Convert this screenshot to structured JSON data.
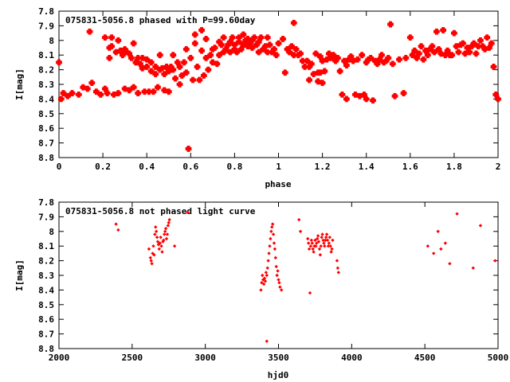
{
  "chart_data": [
    {
      "type": "scatter",
      "title": "075831-5056.8 phased with P=99.60day",
      "xlabel": "phase",
      "ylabel": "I[mag]",
      "xlim": [
        0,
        2
      ],
      "ylim": [
        7.8,
        8.8
      ],
      "y_inverted": true,
      "grid": false,
      "marker": "star",
      "color": "#ff0000",
      "xticks": [
        "0",
        "0.2",
        "0.4",
        "0.6",
        "0.8",
        "1",
        "1.2",
        "1.4",
        "1.6",
        "1.8",
        "2"
      ],
      "yticks": [
        "7.8",
        "7.9",
        "8",
        "8.1",
        "8.2",
        "8.3",
        "8.4",
        "8.5",
        "8.6",
        "8.7",
        "8.8"
      ],
      "points": [
        [
          0.0,
          8.15
        ],
        [
          0.01,
          8.4
        ],
        [
          0.02,
          8.36
        ],
        [
          0.04,
          8.38
        ],
        [
          0.06,
          8.36
        ],
        [
          0.09,
          8.37
        ],
        [
          0.11,
          8.32
        ],
        [
          0.13,
          8.33
        ],
        [
          0.14,
          7.94
        ],
        [
          0.15,
          8.29
        ],
        [
          0.17,
          8.35
        ],
        [
          0.19,
          8.37
        ],
        [
          0.21,
          8.33
        ],
        [
          0.22,
          8.36
        ],
        [
          0.21,
          7.98
        ],
        [
          0.23,
          8.05
        ],
        [
          0.23,
          8.12
        ],
        [
          0.24,
          8.04
        ],
        [
          0.24,
          7.98
        ],
        [
          0.25,
          8.37
        ],
        [
          0.26,
          8.08
        ],
        [
          0.27,
          8.36
        ],
        [
          0.27,
          8.0
        ],
        [
          0.28,
          8.07
        ],
        [
          0.29,
          8.1
        ],
        [
          0.3,
          8.33
        ],
        [
          0.3,
          8.06
        ],
        [
          0.31,
          8.08
        ],
        [
          0.32,
          8.34
        ],
        [
          0.32,
          8.09
        ],
        [
          0.33,
          8.12
        ],
        [
          0.34,
          8.32
        ],
        [
          0.34,
          8.02
        ],
        [
          0.35,
          8.15
        ],
        [
          0.36,
          8.36
        ],
        [
          0.36,
          8.12
        ],
        [
          0.37,
          8.16
        ],
        [
          0.38,
          8.19
        ],
        [
          0.38,
          8.12
        ],
        [
          0.39,
          8.35
        ],
        [
          0.4,
          8.18
        ],
        [
          0.4,
          8.13
        ],
        [
          0.41,
          8.35
        ],
        [
          0.42,
          8.21
        ],
        [
          0.42,
          8.15
        ],
        [
          0.43,
          8.35
        ],
        [
          0.44,
          8.18
        ],
        [
          0.44,
          8.23
        ],
        [
          0.45,
          8.32
        ],
        [
          0.46,
          8.2
        ],
        [
          0.46,
          8.1
        ],
        [
          0.47,
          8.19
        ],
        [
          0.48,
          8.34
        ],
        [
          0.48,
          8.23
        ],
        [
          0.49,
          8.18
        ],
        [
          0.5,
          8.35
        ],
        [
          0.5,
          8.21
        ],
        [
          0.51,
          8.18
        ],
        [
          0.52,
          8.2
        ],
        [
          0.52,
          8.1
        ],
        [
          0.53,
          8.26
        ],
        [
          0.54,
          8.15
        ],
        [
          0.55,
          8.3
        ],
        [
          0.55,
          8.18
        ],
        [
          0.56,
          8.24
        ],
        [
          0.57,
          8.15
        ],
        [
          0.58,
          8.22
        ],
        [
          0.58,
          8.06
        ],
        [
          0.59,
          8.74
        ],
        [
          0.6,
          8.12
        ],
        [
          0.61,
          8.27
        ],
        [
          0.62,
          8.02
        ],
        [
          0.62,
          7.96
        ],
        [
          0.63,
          8.18
        ],
        [
          0.64,
          8.27
        ],
        [
          0.65,
          8.07
        ],
        [
          0.65,
          7.93
        ],
        [
          0.66,
          8.24
        ],
        [
          0.67,
          8.12
        ],
        [
          0.67,
          7.99
        ],
        [
          0.68,
          8.2
        ],
        [
          0.69,
          8.1
        ],
        [
          0.7,
          8.15
        ],
        [
          0.7,
          8.06
        ],
        [
          0.71,
          8.05
        ],
        [
          0.72,
          8.16
        ],
        [
          0.73,
          8.1
        ],
        [
          0.73,
          8.01
        ],
        [
          0.74,
          8.03
        ],
        [
          0.75,
          7.98
        ],
        [
          0.75,
          8.08
        ],
        [
          0.76,
          8.06
        ],
        [
          0.77,
          8.03
        ],
        [
          0.78,
          8.01
        ],
        [
          0.78,
          8.08
        ],
        [
          0.79,
          7.98
        ],
        [
          0.8,
          8.06
        ],
        [
          0.8,
          8.03
        ],
        [
          0.81,
          8.08
        ],
        [
          0.82,
          8.01
        ],
        [
          0.82,
          7.98
        ],
        [
          0.83,
          8.06
        ],
        [
          0.84,
          7.96
        ],
        [
          0.84,
          8.03
        ],
        [
          0.85,
          8.0
        ],
        [
          0.86,
          8.04
        ],
        [
          0.86,
          7.99
        ],
        [
          0.87,
          8.02
        ],
        [
          0.88,
          8.05
        ],
        [
          0.88,
          8.0
        ],
        [
          0.89,
          7.98
        ],
        [
          0.9,
          8.03
        ],
        [
          0.91,
          8.08
        ],
        [
          0.91,
          8.01
        ],
        [
          0.92,
          7.98
        ],
        [
          0.93,
          8.06
        ],
        [
          0.94,
          8.04
        ],
        [
          0.95,
          8.08
        ],
        [
          0.95,
          7.98
        ],
        [
          0.96,
          8.03
        ],
        [
          0.97,
          8.08
        ],
        [
          0.98,
          8.06
        ],
        [
          0.99,
          8.1
        ],
        [
          1.0,
          8.02
        ],
        [
          1.02,
          7.99
        ],
        [
          1.03,
          8.22
        ],
        [
          1.04,
          8.06
        ],
        [
          1.05,
          8.08
        ],
        [
          1.06,
          8.04
        ],
        [
          1.07,
          8.1
        ],
        [
          1.07,
          7.88
        ],
        [
          1.08,
          8.06
        ],
        [
          1.09,
          8.1
        ],
        [
          1.1,
          8.09
        ],
        [
          1.11,
          8.14
        ],
        [
          1.12,
          8.18
        ],
        [
          1.13,
          8.14
        ],
        [
          1.14,
          8.18
        ],
        [
          1.14,
          8.27
        ],
        [
          1.15,
          8.16
        ],
        [
          1.16,
          8.23
        ],
        [
          1.17,
          8.09
        ],
        [
          1.18,
          8.22
        ],
        [
          1.18,
          8.28
        ],
        [
          1.19,
          8.11
        ],
        [
          1.19,
          8.22
        ],
        [
          1.2,
          8.14
        ],
        [
          1.2,
          8.29
        ],
        [
          1.21,
          8.21
        ],
        [
          1.22,
          8.13
        ],
        [
          1.23,
          8.09
        ],
        [
          1.24,
          8.12
        ],
        [
          1.25,
          8.1
        ],
        [
          1.26,
          8.14
        ],
        [
          1.27,
          8.12
        ],
        [
          1.28,
          8.21
        ],
        [
          1.29,
          8.37
        ],
        [
          1.3,
          8.14
        ],
        [
          1.31,
          8.17
        ],
        [
          1.31,
          8.4
        ],
        [
          1.32,
          8.13
        ],
        [
          1.33,
          8.11
        ],
        [
          1.34,
          8.14
        ],
        [
          1.35,
          8.37
        ],
        [
          1.36,
          8.13
        ],
        [
          1.37,
          8.38
        ],
        [
          1.38,
          8.1
        ],
        [
          1.39,
          8.37
        ],
        [
          1.4,
          8.15
        ],
        [
          1.4,
          8.4
        ],
        [
          1.41,
          8.13
        ],
        [
          1.42,
          8.12
        ],
        [
          1.43,
          8.41
        ],
        [
          1.44,
          8.14
        ],
        [
          1.45,
          8.16
        ],
        [
          1.46,
          8.13
        ],
        [
          1.47,
          8.1
        ],
        [
          1.48,
          8.15
        ],
        [
          1.49,
          8.14
        ],
        [
          1.5,
          8.12
        ],
        [
          1.51,
          7.89
        ],
        [
          1.52,
          8.16
        ],
        [
          1.53,
          8.38
        ],
        [
          1.55,
          8.13
        ],
        [
          1.57,
          8.36
        ],
        [
          1.58,
          8.12
        ],
        [
          1.6,
          7.98
        ],
        [
          1.61,
          8.1
        ],
        [
          1.62,
          8.07
        ],
        [
          1.63,
          8.12
        ],
        [
          1.64,
          8.09
        ],
        [
          1.65,
          8.04
        ],
        [
          1.66,
          8.13
        ],
        [
          1.67,
          8.07
        ],
        [
          1.68,
          8.1
        ],
        [
          1.69,
          8.06
        ],
        [
          1.7,
          8.04
        ],
        [
          1.71,
          8.08
        ],
        [
          1.72,
          7.94
        ],
        [
          1.73,
          8.06
        ],
        [
          1.74,
          8.09
        ],
        [
          1.75,
          7.93
        ],
        [
          1.76,
          8.1
        ],
        [
          1.77,
          8.07
        ],
        [
          1.78,
          8.1
        ],
        [
          1.79,
          8.1
        ],
        [
          1.8,
          7.95
        ],
        [
          1.81,
          8.04
        ],
        [
          1.82,
          8.08
        ],
        [
          1.83,
          8.03
        ],
        [
          1.84,
          8.02
        ],
        [
          1.85,
          8.09
        ],
        [
          1.86,
          8.05
        ],
        [
          1.87,
          8.08
        ],
        [
          1.88,
          8.04
        ],
        [
          1.89,
          8.02
        ],
        [
          1.9,
          8.09
        ],
        [
          1.91,
          8.04
        ],
        [
          1.92,
          8.0
        ],
        [
          1.93,
          8.04
        ],
        [
          1.94,
          8.06
        ],
        [
          1.95,
          7.98
        ],
        [
          1.96,
          8.05
        ],
        [
          1.97,
          8.02
        ],
        [
          1.98,
          8.18
        ],
        [
          1.99,
          8.37
        ],
        [
          2.0,
          8.4
        ]
      ]
    },
    {
      "type": "scatter",
      "title": "075831-5056.8 not phased light curve",
      "xlabel": "hjd0",
      "ylabel": "I[mag]",
      "xlim": [
        2000,
        5000
      ],
      "ylim": [
        7.8,
        8.8
      ],
      "y_inverted": true,
      "grid": false,
      "marker": "diamond",
      "color": "#ff0000",
      "xticks": [
        "2000",
        "2500",
        "3000",
        "3500",
        "4000",
        "4500",
        "5000"
      ],
      "yticks": [
        "7.8",
        "7.9",
        "8",
        "8.1",
        "8.2",
        "8.3",
        "8.4",
        "8.5",
        "8.6",
        "8.7",
        "8.8"
      ],
      "points": [
        [
          2390,
          7.95
        ],
        [
          2405,
          7.99
        ],
        [
          2615,
          8.12
        ],
        [
          2625,
          8.18
        ],
        [
          2630,
          8.2
        ],
        [
          2635,
          8.22
        ],
        [
          2640,
          8.15
        ],
        [
          2645,
          8.1
        ],
        [
          2650,
          8.16
        ],
        [
          2655,
          8.02
        ],
        [
          2660,
          7.97
        ],
        [
          2665,
          8.0
        ],
        [
          2670,
          8.04
        ],
        [
          2675,
          8.07
        ],
        [
          2680,
          8.09
        ],
        [
          2685,
          8.12
        ],
        [
          2690,
          8.08
        ],
        [
          2695,
          8.04
        ],
        [
          2700,
          8.1
        ],
        [
          2705,
          8.14
        ],
        [
          2710,
          8.07
        ],
        [
          2715,
          8.06
        ],
        [
          2720,
          8.02
        ],
        [
          2725,
          8.0
        ],
        [
          2730,
          7.98
        ],
        [
          2735,
          8.05
        ],
        [
          2740,
          8.02
        ],
        [
          2745,
          7.96
        ],
        [
          2750,
          7.94
        ],
        [
          2755,
          7.92
        ],
        [
          2790,
          8.1
        ],
        [
          2880,
          7.87
        ],
        [
          3380,
          8.4
        ],
        [
          3385,
          8.35
        ],
        [
          3390,
          8.3
        ],
        [
          3395,
          8.33
        ],
        [
          3400,
          8.36
        ],
        [
          3405,
          8.32
        ],
        [
          3410,
          8.34
        ],
        [
          3415,
          8.28
        ],
        [
          3420,
          8.3
        ],
        [
          3425,
          8.25
        ],
        [
          3430,
          8.2
        ],
        [
          3435,
          8.15
        ],
        [
          3440,
          8.1
        ],
        [
          3445,
          8.05
        ],
        [
          3450,
          8.0
        ],
        [
          3455,
          7.97
        ],
        [
          3460,
          7.95
        ],
        [
          3465,
          8.02
        ],
        [
          3470,
          8.08
        ],
        [
          3475,
          8.12
        ],
        [
          3480,
          8.18
        ],
        [
          3485,
          8.24
        ],
        [
          3490,
          8.3
        ],
        [
          3495,
          8.27
        ],
        [
          3500,
          8.33
        ],
        [
          3505,
          8.35
        ],
        [
          3510,
          8.38
        ],
        [
          3520,
          8.4
        ],
        [
          3420,
          8.75
        ],
        [
          3640,
          7.92
        ],
        [
          3650,
          8.0
        ],
        [
          3700,
          8.05
        ],
        [
          3705,
          8.08
        ],
        [
          3710,
          8.12
        ],
        [
          3715,
          8.42
        ],
        [
          3720,
          8.1
        ],
        [
          3725,
          8.06
        ],
        [
          3730,
          8.08
        ],
        [
          3735,
          8.12
        ],
        [
          3740,
          8.14
        ],
        [
          3745,
          8.1
        ],
        [
          3750,
          8.06
        ],
        [
          3755,
          8.1
        ],
        [
          3760,
          8.08
        ],
        [
          3765,
          8.05
        ],
        [
          3770,
          8.03
        ],
        [
          3775,
          8.07
        ],
        [
          3780,
          8.12
        ],
        [
          3785,
          8.16
        ],
        [
          3790,
          8.1
        ],
        [
          3795,
          8.04
        ],
        [
          3800,
          8.02
        ],
        [
          3805,
          8.06
        ],
        [
          3810,
          8.08
        ],
        [
          3815,
          8.1
        ],
        [
          3820,
          8.06
        ],
        [
          3825,
          8.04
        ],
        [
          3830,
          8.02
        ],
        [
          3835,
          8.06
        ],
        [
          3840,
          8.1
        ],
        [
          3845,
          8.08
        ],
        [
          3850,
          8.04
        ],
        [
          3855,
          8.1
        ],
        [
          3860,
          8.14
        ],
        [
          3865,
          8.12
        ],
        [
          3870,
          8.06
        ],
        [
          3900,
          8.2
        ],
        [
          3905,
          8.25
        ],
        [
          3910,
          8.28
        ],
        [
          4520,
          8.1
        ],
        [
          4560,
          8.15
        ],
        [
          4590,
          8.0
        ],
        [
          4610,
          8.12
        ],
        [
          4640,
          8.08
        ],
        [
          4670,
          8.22
        ],
        [
          4720,
          7.88
        ],
        [
          4830,
          8.25
        ],
        [
          4880,
          7.96
        ],
        [
          4980,
          8.2
        ]
      ]
    }
  ]
}
